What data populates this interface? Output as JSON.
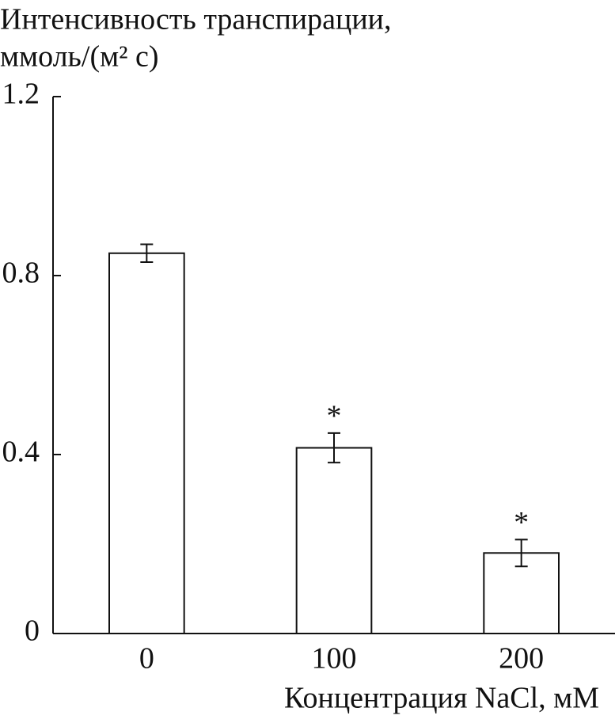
{
  "chart_data": {
    "type": "bar",
    "ylabel_lines": [
      "Интенсивность транспирации,",
      "ммоль/(м² с)"
    ],
    "xlabel": "Концентрация NaCl, мМ",
    "categories": [
      "0",
      "100",
      "200"
    ],
    "values": [
      0.85,
      0.415,
      0.18
    ],
    "errors": [
      0.02,
      0.033,
      0.03
    ],
    "annotations": [
      {
        "x": "100",
        "text": "*"
      },
      {
        "x": "200",
        "text": "*"
      }
    ],
    "color": "#ffffff",
    "ylim": [
      0,
      1.2
    ],
    "yticks": [
      0,
      0.4,
      0.8,
      1.2
    ],
    "grid": false
  }
}
